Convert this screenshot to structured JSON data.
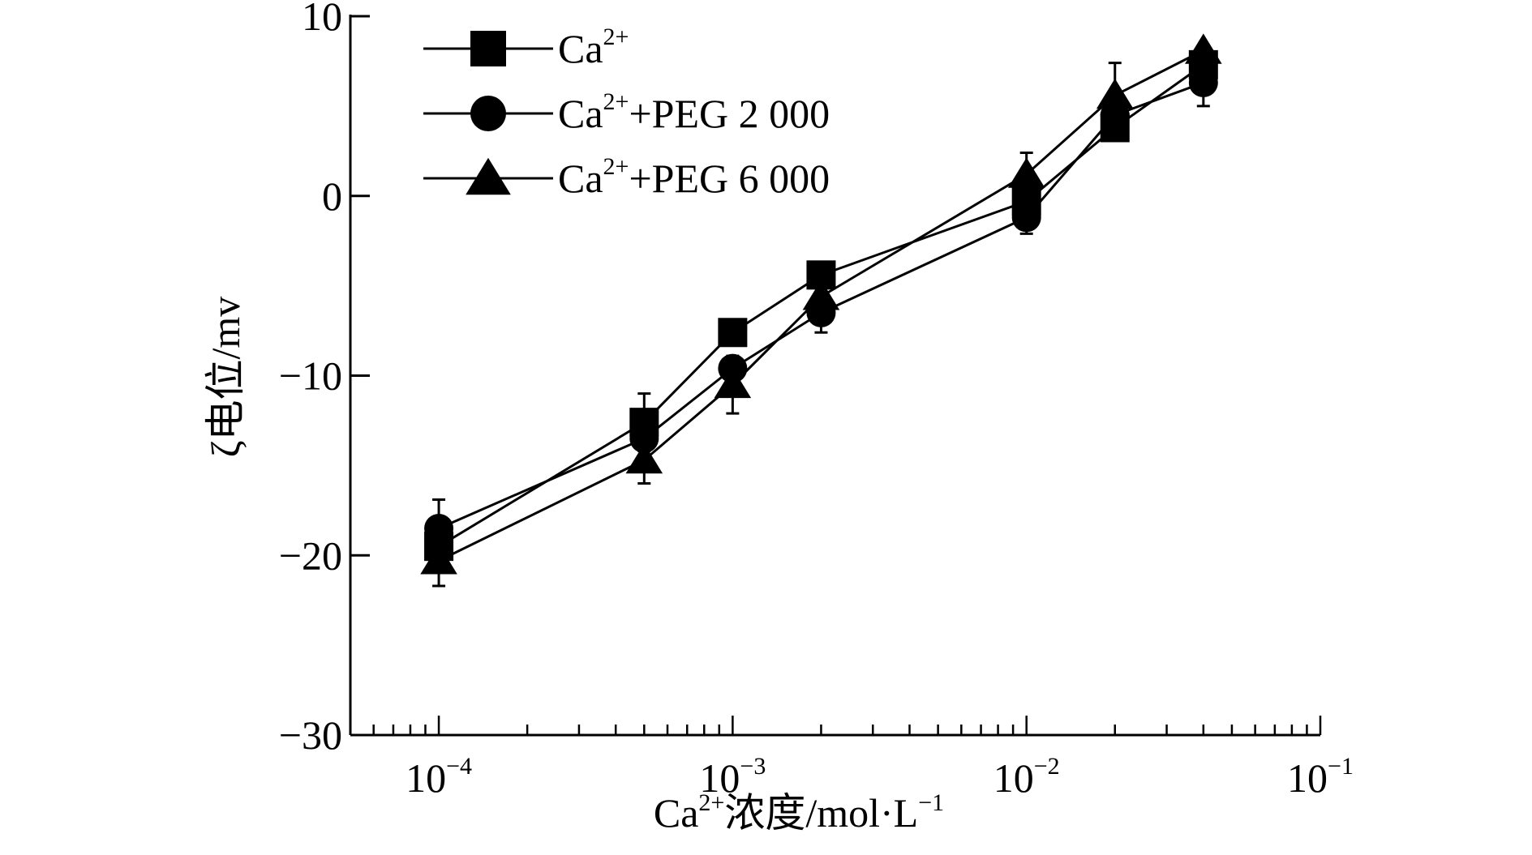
{
  "chart_data": {
    "type": "line",
    "xscale": "log",
    "xlim": [
      5e-05,
      0.1
    ],
    "ylim": [
      -30,
      10
    ],
    "x_ticks": [
      0.0001,
      0.001,
      0.01,
      0.1
    ],
    "x_tick_labels": [
      {
        "base": "10",
        "exp": "−4"
      },
      {
        "base": "10",
        "exp": "−3"
      },
      {
        "base": "10",
        "exp": "−2"
      },
      {
        "base": "10",
        "exp": "−1"
      }
    ],
    "y_ticks": [
      -30,
      -20,
      -10,
      0,
      10
    ],
    "y_tick_labels": [
      "−30",
      "−20",
      "−10",
      "0",
      "10"
    ],
    "xlabel": {
      "pre": "Ca",
      "sup": "2+",
      "post": "浓度/mol·L",
      "sup2": "−1"
    },
    "ylabel": "ζ电位/mv",
    "legend_position": "top-left",
    "grid": false,
    "x": [
      0.0001,
      0.0005,
      0.001,
      0.002,
      0.01,
      0.02,
      0.04
    ],
    "series": [
      {
        "name": {
          "pre": "Ca",
          "sup": "2+",
          "post": ""
        },
        "marker": "square",
        "values": [
          -19.5,
          -12.6,
          -7.6,
          -4.4,
          -0.3,
          3.8,
          7.3
        ],
        "error": [
          0,
          1.6,
          0,
          0,
          0,
          0,
          0
        ]
      },
      {
        "name": {
          "pre": "Ca",
          "sup": "2+",
          "post": "+PEG 2 000"
        },
        "marker": "circle",
        "values": [
          -18.5,
          -13.5,
          -9.6,
          -6.5,
          -1.2,
          4.5,
          6.3
        ],
        "error": [
          1.6,
          0,
          0,
          1.1,
          0.9,
          0,
          1.3
        ]
      },
      {
        "name": {
          "pre": "Ca",
          "sup": "2+",
          "post": "+PEG 6 000"
        },
        "marker": "triangle",
        "values": [
          -20.3,
          -14.7,
          -10.5,
          -5.6,
          1.2,
          5.6,
          8.1
        ],
        "error": [
          1.4,
          1.3,
          1.6,
          0,
          1.2,
          1.8,
          0
        ]
      }
    ]
  }
}
